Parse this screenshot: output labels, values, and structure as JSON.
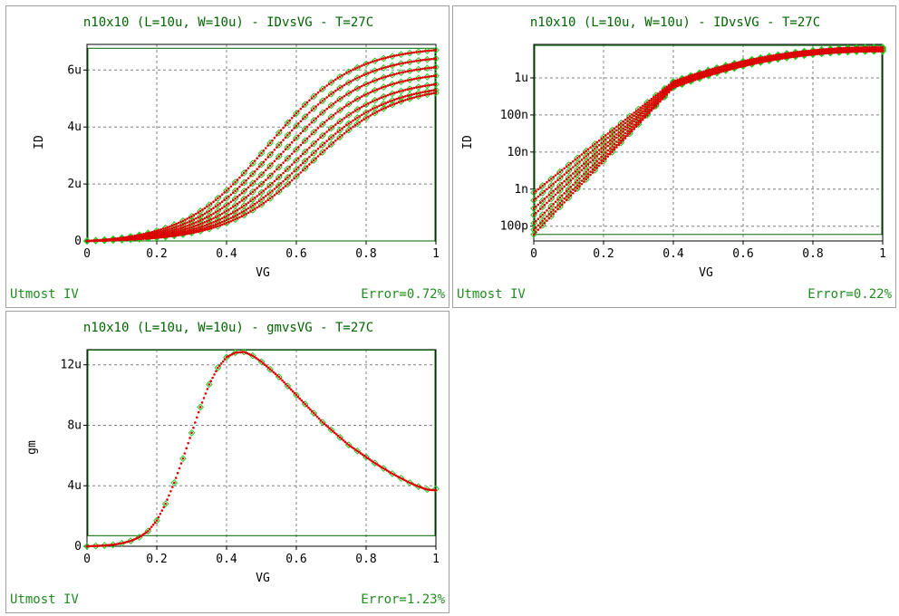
{
  "colors": {
    "measured": "#22cc22",
    "simulated": "#dd0000",
    "title": "#006400",
    "footer": "#228b22",
    "frame": "#006400"
  },
  "chart_data": [
    {
      "type": "scatter",
      "title": "n10x10 (L=10u, W=10u) - IDvsVG - T=27C",
      "xlabel": "VG",
      "ylabel": "ID",
      "xlim": [
        0,
        1
      ],
      "ylim": [
        0,
        6.9e-06
      ],
      "xticks": [
        0,
        0.2,
        0.4,
        0.6,
        0.8,
        1
      ],
      "xtick_labels": [
        "0",
        "0.2",
        "0.4",
        "0.6",
        "0.8",
        "1"
      ],
      "yticks": [
        0,
        2e-06,
        4e-06,
        6e-06
      ],
      "ytick_labels": [
        "0",
        "2u",
        "4u",
        "6u"
      ],
      "y_scale": "linear",
      "grid": true,
      "footer_left": "Utmost IV",
      "footer_right": "Error=0.72%",
      "curve_family": {
        "count": 7,
        "end_values_at_vg_1": [
          6.7e-06,
          6.4e-06,
          6.1e-06,
          5.8e-06,
          5.5e-06,
          5.3e-06,
          5.2e-06
        ],
        "inflection_vg": [
          0.52,
          0.54,
          0.56,
          0.58,
          0.6,
          0.62,
          0.64
        ]
      },
      "series": [
        {
          "marker": "diamond",
          "color": "#22cc22",
          "style": "measured"
        },
        {
          "marker": "dot",
          "color": "#dd0000",
          "style": "simulated"
        }
      ]
    },
    {
      "type": "scatter",
      "title": "n10x10 (L=10u, W=10u) - IDvsVG - T=27C",
      "xlabel": "VG",
      "ylabel": "ID",
      "xlim": [
        0,
        1
      ],
      "ylim": [
        4e-11,
        8e-06
      ],
      "xticks": [
        0,
        0.2,
        0.4,
        0.6,
        0.8,
        1
      ],
      "xtick_labels": [
        "0",
        "0.2",
        "0.4",
        "0.6",
        "0.8",
        "1"
      ],
      "yticks": [
        1e-10,
        1e-09,
        1e-08,
        1e-07,
        1e-06
      ],
      "ytick_labels": [
        "100p",
        "1n",
        "10n",
        "100n",
        "1u"
      ],
      "y_scale": "log",
      "grid": true,
      "footer_left": "Utmost IV",
      "footer_right": "Error=0.22%",
      "curve_family": {
        "count": 7,
        "start_values_at_vg_0": [
          8e-10,
          5e-10,
          3e-10,
          2e-10,
          1.2e-10,
          8e-11,
          6e-11
        ],
        "end_values_at_vg_1": [
          6.7e-06,
          6.4e-06,
          6.1e-06,
          5.8e-06,
          5.5e-06,
          5.3e-06,
          5.2e-06
        ],
        "knee_vg": 0.4
      },
      "series": [
        {
          "marker": "diamond",
          "color": "#22cc22",
          "style": "measured"
        },
        {
          "marker": "dot",
          "color": "#dd0000",
          "style": "simulated"
        }
      ]
    },
    {
      "type": "scatter",
      "title": "n10x10 (L=10u, W=10u) - gmvsVG - T=27C",
      "xlabel": "VG",
      "ylabel": "gm",
      "xlim": [
        0,
        1
      ],
      "ylim": [
        0,
        1.3e-05
      ],
      "xticks": [
        0,
        0.2,
        0.4,
        0.6,
        0.8,
        1
      ],
      "xtick_labels": [
        "0",
        "0.2",
        "0.4",
        "0.6",
        "0.8",
        "1"
      ],
      "yticks": [
        0,
        4e-06,
        8e-06,
        1.2e-05
      ],
      "ytick_labels": [
        "0",
        "4u",
        "8u",
        "12u"
      ],
      "y_scale": "linear",
      "grid": true,
      "footer_left": "Utmost IV",
      "footer_right": "Error=1.23%",
      "x": [
        0,
        0.025,
        0.05,
        0.075,
        0.1,
        0.125,
        0.15,
        0.175,
        0.2,
        0.225,
        0.25,
        0.275,
        0.3,
        0.325,
        0.35,
        0.375,
        0.4,
        0.425,
        0.45,
        0.475,
        0.5,
        0.525,
        0.55,
        0.575,
        0.6,
        0.625,
        0.65,
        0.675,
        0.7,
        0.725,
        0.75,
        0.775,
        0.8,
        0.825,
        0.85,
        0.875,
        0.9,
        0.925,
        0.95,
        0.975,
        1.0
      ],
      "series": [
        {
          "marker": "diamond",
          "color": "#22cc22",
          "style": "measured",
          "values": [
            0,
            2e-08,
            5e-08,
            1e-07,
            2e-07,
            3.5e-07,
            6e-07,
            1e-06,
            1.7e-06,
            2.8e-06,
            4.2e-06,
            5.8e-06,
            7.5e-06,
            9.2e-06,
            1.07e-05,
            1.18e-05,
            1.25e-05,
            1.28e-05,
            1.285e-05,
            1.26e-05,
            1.22e-05,
            1.17e-05,
            1.12e-05,
            1.06e-05,
            1e-05,
            9.4e-06,
            8.8e-06,
            8.2e-06,
            7.7e-06,
            7.2e-06,
            6.7e-06,
            6.3e-06,
            5.9e-06,
            5.5e-06,
            5.15e-06,
            4.8e-06,
            4.5e-06,
            4.2e-06,
            3.95e-06,
            3.75e-06,
            3.8e-06
          ]
        },
        {
          "marker": "dot",
          "color": "#dd0000",
          "style": "simulated",
          "values": [
            0,
            2e-08,
            5e-08,
            1e-07,
            2e-07,
            3.5e-07,
            6e-07,
            1e-06,
            1.7e-06,
            2.8e-06,
            4.2e-06,
            5.8e-06,
            7.5e-06,
            9.2e-06,
            1.07e-05,
            1.18e-05,
            1.25e-05,
            1.28e-05,
            1.285e-05,
            1.26e-05,
            1.22e-05,
            1.17e-05,
            1.12e-05,
            1.06e-05,
            1e-05,
            9.4e-06,
            8.8e-06,
            8.2e-06,
            7.7e-06,
            7.2e-06,
            6.7e-06,
            6.3e-06,
            5.9e-06,
            5.5e-06,
            5.15e-06,
            4.8e-06,
            4.5e-06,
            4.2e-06,
            3.95e-06,
            3.75e-06,
            3.7e-06
          ]
        }
      ]
    }
  ]
}
